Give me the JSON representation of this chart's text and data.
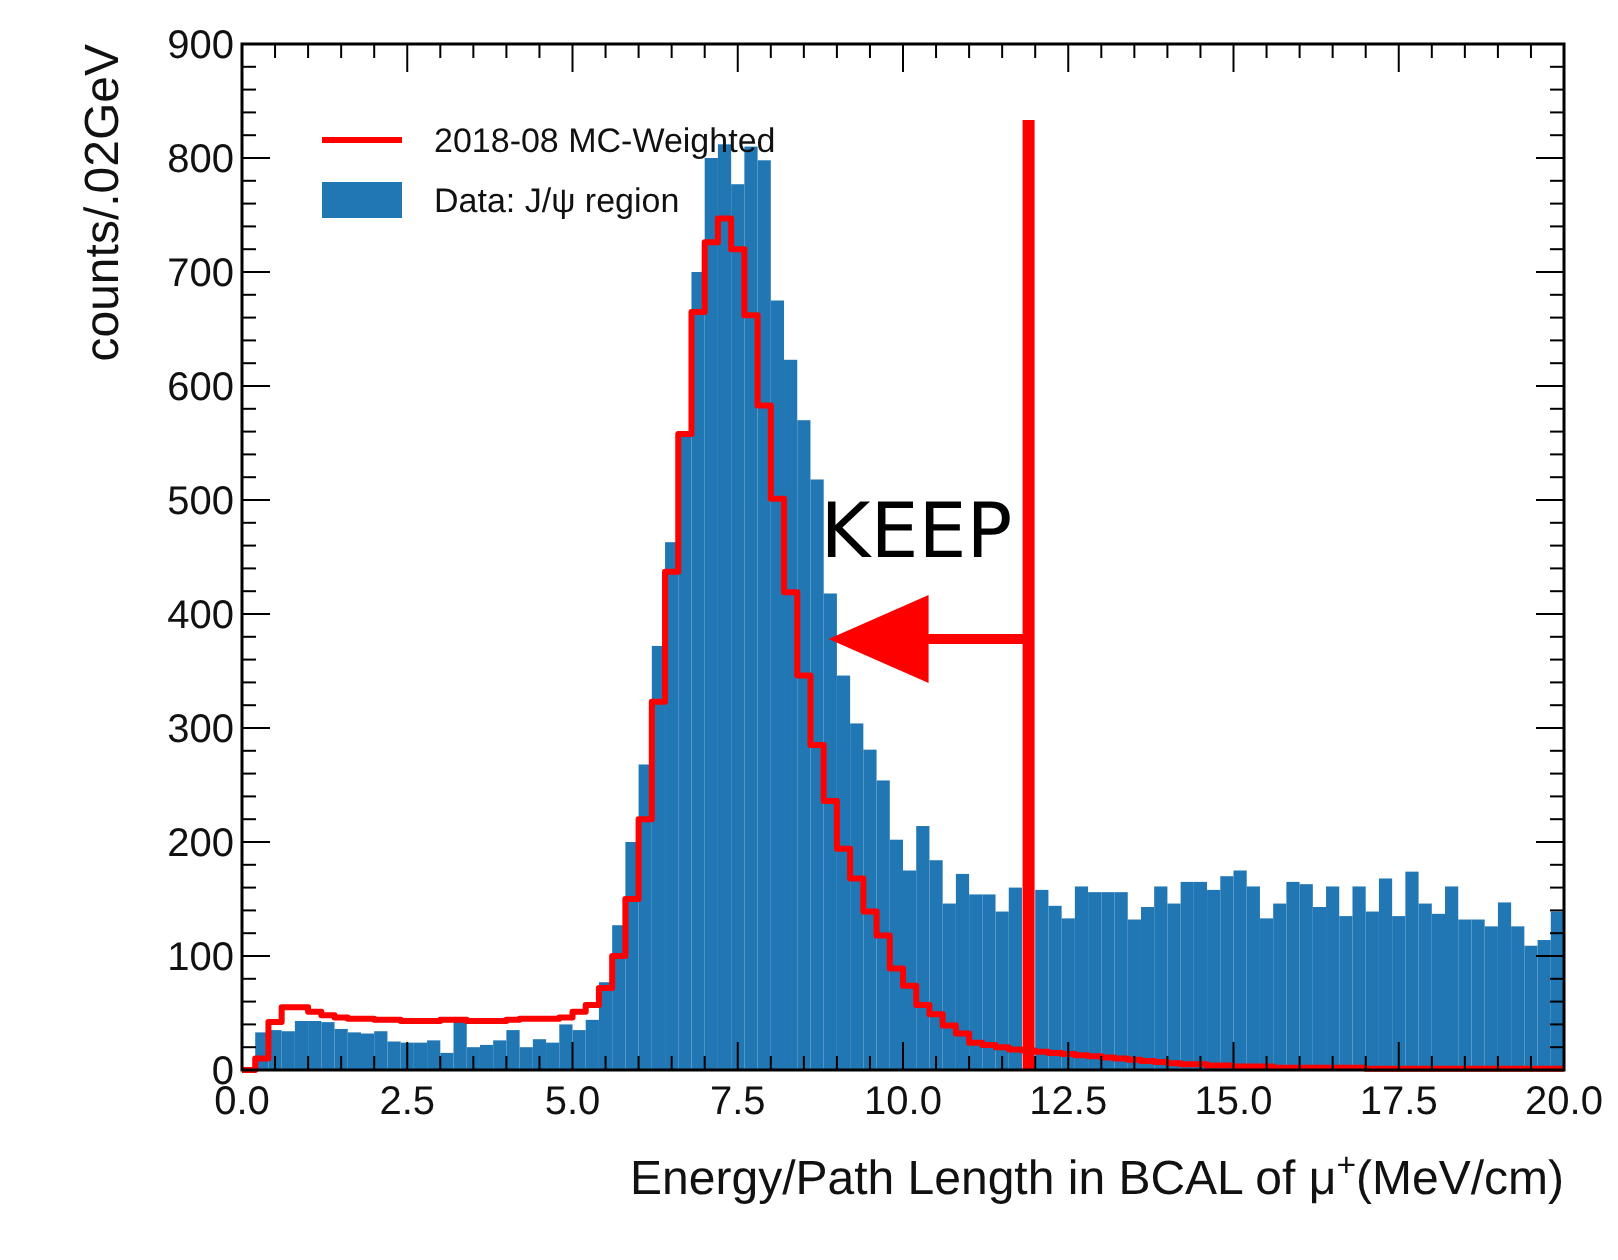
{
  "chart_data": {
    "type": "histogram",
    "xlabel": "Energy/Path Length in BCAL of μ$^{+}$(MeV/cm)",
    "ylabel": "counts/.02GeV",
    "bins": [
      0,
      0.2,
      0.4,
      0.6,
      0.8,
      1,
      1.2,
      1.4,
      1.6,
      1.8,
      2,
      2.2,
      2.4,
      2.6,
      2.8,
      3,
      3.2,
      3.4,
      3.6,
      3.8,
      4,
      4.2,
      4.4,
      4.6,
      4.8,
      5,
      5.2,
      5.4,
      5.6,
      5.8,
      6,
      6.2,
      6.4,
      6.6,
      6.8,
      7,
      7.2,
      7.4,
      7.6,
      7.8,
      8,
      8.2,
      8.4,
      8.6,
      8.8,
      9,
      9.2,
      9.4,
      9.6,
      9.8,
      10,
      10.2,
      10.4,
      10.6,
      10.8,
      11,
      11.2,
      11.4,
      11.6,
      11.8,
      12,
      12.2,
      12.4,
      12.6,
      12.8,
      13,
      13.2,
      13.4,
      13.6,
      13.8,
      14,
      14.2,
      14.4,
      14.6,
      14.8,
      15,
      15.2,
      15.4,
      15.6,
      15.8,
      16,
      16.2,
      16.4,
      16.6,
      16.8,
      17,
      17.2,
      17.4,
      17.6,
      17.8,
      18,
      18.2,
      18.4,
      18.6,
      18.8,
      19,
      19.2,
      19.4,
      19.6,
      19.8,
      20
    ],
    "series": [
      {
        "name": "2018-08 MC-Weighted",
        "type": "step",
        "color": "#ff0000",
        "x": [
          0.1,
          0.3,
          0.5,
          0.7,
          0.9,
          1.1,
          1.3,
          1.5,
          1.7,
          1.9,
          2.1,
          2.3,
          2.5,
          2.7,
          2.9,
          3.1,
          3.3,
          3.5,
          3.7,
          3.9,
          4.1,
          4.3,
          4.5,
          4.7,
          4.9,
          5.1,
          5.3,
          5.5,
          5.7,
          5.9,
          6.1,
          6.3,
          6.5,
          6.7,
          6.9,
          7.1,
          7.3,
          7.5,
          7.7,
          7.9,
          8.1,
          8.3,
          8.5,
          8.7,
          8.9,
          9.1,
          9.3,
          9.5,
          9.7,
          9.9,
          10.1,
          10.3,
          10.5,
          10.7,
          10.9,
          11.1,
          11.3,
          11.5,
          11.7,
          11.9,
          12.1,
          12.3,
          12.5,
          12.7,
          12.9,
          13.1,
          13.3,
          13.5,
          13.7,
          13.9,
          14.1,
          14.3,
          14.5,
          14.7,
          14.9,
          15.1,
          15.3,
          15.5,
          15.7,
          15.9,
          16.1,
          16.3,
          16.5,
          16.7,
          16.9,
          17.1,
          17.3,
          17.5,
          17.7,
          17.9,
          18.1,
          18.3,
          18.5,
          18.7,
          18.9,
          19.1,
          19.3,
          19.5,
          19.7,
          19.9
        ],
        "values": [
          0,
          10,
          42,
          55,
          55,
          51,
          48,
          46,
          45,
          45,
          44,
          44,
          43,
          43,
          43,
          44,
          44,
          43,
          43,
          43,
          44,
          45,
          45,
          45,
          46,
          51,
          57,
          72,
          100,
          150,
          220,
          323,
          437,
          558,
          665,
          726,
          747,
          720,
          662,
          583,
          501,
          419,
          346,
          285,
          236,
          194,
          168,
          139,
          118,
          89,
          74,
          57,
          49,
          39,
          32,
          24,
          22,
          20,
          18,
          17,
          16,
          15,
          14,
          13,
          12,
          11,
          10,
          9,
          8,
          7,
          6,
          5,
          5,
          4,
          4,
          3,
          3,
          3,
          2,
          2,
          2,
          2,
          2,
          2,
          2,
          1,
          1,
          1,
          1,
          1,
          1,
          1,
          1,
          1,
          1,
          1,
          1,
          1,
          1,
          1
        ]
      },
      {
        "name": "Data: J/ψ region",
        "color": "#2077b4",
        "values": [
          null,
          33,
          35,
          34,
          43,
          43,
          42,
          36,
          33,
          32,
          34,
          25,
          24,
          24,
          26,
          15,
          44,
          20,
          22,
          26,
          35,
          20,
          27,
          24,
          40,
          35,
          44,
          77,
          127,
          200,
          268,
          372,
          463,
          557,
          700,
          800,
          812,
          777,
          810,
          798,
          675,
          623,
          570,
          518,
          418,
          346,
          304,
          281,
          254,
          202,
          175,
          214,
          184,
          146,
          172,
          154,
          154,
          139,
          160,
          null,
          158,
          144,
          133,
          161,
          156,
          156,
          156,
          132,
          143,
          161,
          146,
          165,
          165,
          158,
          170,
          175,
          161,
          133,
          146,
          165,
          163,
          143,
          161,
          135,
          161,
          139,
          168,
          135,
          174,
          146,
          137,
          161,
          132,
          132,
          126,
          147,
          126,
          109,
          114,
          139
        ]
      }
    ],
    "xlim": [
      0,
      20
    ],
    "xticks": [
      {
        "value": 0,
        "label": "0.0"
      },
      {
        "value": 2.5,
        "label": "2.5"
      },
      {
        "value": 5,
        "label": "5.0"
      },
      {
        "value": 7.5,
        "label": "7.5"
      },
      {
        "value": 10,
        "label": "10.0"
      },
      {
        "value": 12.5,
        "label": "12.5"
      },
      {
        "value": 15,
        "label": "15.0"
      },
      {
        "value": 17.5,
        "label": "17.5"
      },
      {
        "value": 20,
        "label": "20.0"
      }
    ],
    "ylim": [
      0,
      900
    ],
    "yticks": [
      0,
      100,
      200,
      300,
      400,
      500,
      600,
      700,
      800,
      900
    ],
    "ref_lines": [
      {
        "axis": "x",
        "value": 11.9,
        "color": "#ff0000"
      }
    ],
    "annotations": [
      "KEEP"
    ],
    "legend": "top left"
  }
}
